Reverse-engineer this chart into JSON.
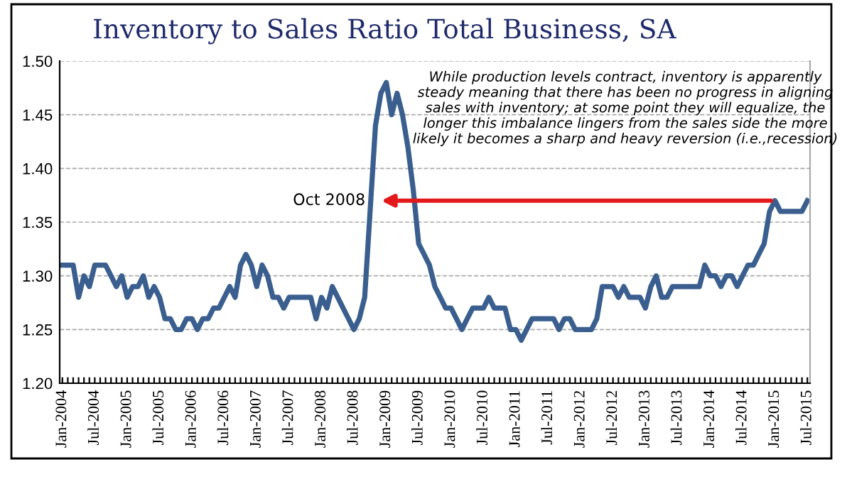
{
  "chart_data": {
    "type": "line",
    "title": "Inventory to Sales Ratio Total Business, SA",
    "categories": [
      "Jan-2004",
      null,
      null,
      null,
      null,
      null,
      "Jul-2004",
      null,
      null,
      null,
      null,
      null,
      "Jan-2005",
      null,
      null,
      null,
      null,
      null,
      "Jul-2005",
      null,
      null,
      null,
      null,
      null,
      "Jan-2006",
      null,
      null,
      null,
      null,
      null,
      "Jul-2006",
      null,
      null,
      null,
      null,
      null,
      "Jan-2007",
      null,
      null,
      null,
      null,
      null,
      "Jul-2007",
      null,
      null,
      null,
      null,
      null,
      "Jan-2008",
      null,
      null,
      null,
      null,
      null,
      "Jul-2008",
      null,
      null,
      null,
      null,
      null,
      "Jan-2009",
      null,
      null,
      null,
      null,
      null,
      "Jul-2009",
      null,
      null,
      null,
      null,
      null,
      "Jan-2010",
      null,
      null,
      null,
      null,
      null,
      "Jul-2010",
      null,
      null,
      null,
      null,
      null,
      "Jan-2011",
      null,
      null,
      null,
      null,
      null,
      "Jul-2011",
      null,
      null,
      null,
      null,
      null,
      "Jan-2012",
      null,
      null,
      null,
      null,
      null,
      "Jul-2012",
      null,
      null,
      null,
      null,
      null,
      "Jan-2013",
      null,
      null,
      null,
      null,
      null,
      "Jul-2013",
      null,
      null,
      null,
      null,
      null,
      "Jan-2014",
      null,
      null,
      null,
      null,
      null,
      "Jul-2014",
      null,
      null,
      null,
      null,
      null,
      "Jan-2015",
      null,
      null,
      null,
      null,
      null,
      "Jul-2015"
    ],
    "series": [
      {
        "color": "#3a5f8f",
        "values": [
          1.31,
          1.31,
          1.31,
          1.28,
          1.3,
          1.29,
          1.31,
          1.31,
          1.31,
          1.3,
          1.29,
          1.3,
          1.28,
          1.29,
          1.29,
          1.3,
          1.28,
          1.29,
          1.28,
          1.26,
          1.26,
          1.25,
          1.25,
          1.26,
          1.26,
          1.25,
          1.26,
          1.26,
          1.27,
          1.27,
          1.28,
          1.29,
          1.28,
          1.31,
          1.32,
          1.31,
          1.29,
          1.31,
          1.3,
          1.28,
          1.28,
          1.27,
          1.28,
          1.28,
          1.28,
          1.28,
          1.28,
          1.26,
          1.28,
          1.27,
          1.29,
          1.28,
          1.27,
          1.26,
          1.25,
          1.26,
          1.28,
          1.36,
          1.44,
          1.47,
          1.48,
          1.45,
          1.47,
          1.45,
          1.42,
          1.38,
          1.33,
          1.32,
          1.31,
          1.29,
          1.28,
          1.27,
          1.27,
          1.26,
          1.25,
          1.26,
          1.27,
          1.27,
          1.27,
          1.28,
          1.27,
          1.27,
          1.27,
          1.25,
          1.25,
          1.24,
          1.25,
          1.26,
          1.26,
          1.26,
          1.26,
          1.26,
          1.25,
          1.26,
          1.26,
          1.25,
          1.25,
          1.25,
          1.25,
          1.26,
          1.29,
          1.29,
          1.29,
          1.28,
          1.29,
          1.28,
          1.28,
          1.28,
          1.27,
          1.29,
          1.3,
          1.28,
          1.28,
          1.29,
          1.29,
          1.29,
          1.29,
          1.29,
          1.29,
          1.31,
          1.3,
          1.3,
          1.29,
          1.3,
          1.3,
          1.29,
          1.3,
          1.31,
          1.31,
          1.32,
          1.33,
          1.36,
          1.37,
          1.36,
          1.36,
          1.36,
          1.36,
          1.36,
          1.37
        ]
      }
    ],
    "ylim": [
      1.2,
      1.5
    ],
    "yticks": [
      {
        "value": 1.2,
        "label": "1.20"
      },
      {
        "value": 1.25,
        "label": "1.25"
      },
      {
        "value": 1.3,
        "label": "1.30"
      },
      {
        "value": 1.35,
        "label": "1.35"
      },
      {
        "value": 1.4,
        "label": "1.40"
      },
      {
        "value": 1.45,
        "label": "1.45"
      },
      {
        "value": 1.5,
        "label": "1.50"
      }
    ],
    "grid": "y",
    "legend": false,
    "marker": "none",
    "line_style": "solid",
    "annotations": [
      "Oct 2008",
      "While production levels contract, inventory is apparently steady meaning that there has been no progress in aligning sales with inventory; at some point they will equalize, the longer this imbalance lingers from the sales side the more likely it becomes a sharp and heavy reversion (i.e.,recession)"
    ]
  }
}
